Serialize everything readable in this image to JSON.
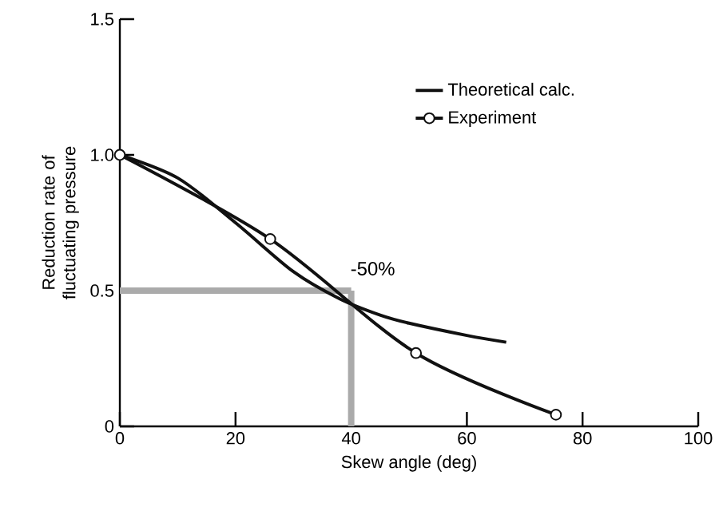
{
  "chart_data": {
    "type": "line",
    "xlabel": "Skew angle (deg)",
    "ylabel": "Reduction rate of fluctuating pressure",
    "xlim": [
      0,
      100
    ],
    "ylim": [
      0,
      1.5
    ],
    "xticks": [
      0,
      20,
      40,
      60,
      80,
      100
    ],
    "yticks": [
      0,
      0.5,
      {
        "value": 1,
        "label": "1.0"
      },
      1.5
    ],
    "grid": false,
    "legend": "top right",
    "line_style": "solid",
    "series": [
      {
        "name": "Theoretical calc.",
        "color": "#111111",
        "marker": "none",
        "x": [
          0,
          10,
          20,
          30,
          38,
          45,
          50,
          60,
          66.8
        ],
        "values": [
          1,
          0.915,
          0.75,
          0.57,
          0.47,
          0.41,
          0.38,
          0.335,
          0.31
        ]
      },
      {
        "name": "Experiment",
        "color": "#111111",
        "marker": "circle",
        "x": [
          0,
          26,
          51.2,
          75.4
        ],
        "values": [
          1,
          0.69,
          0.27,
          0.043
        ]
      }
    ],
    "ref_lines": [
      {
        "axis": "y",
        "value": 0.5,
        "color": "#aaaaaa"
      },
      {
        "axis": "x",
        "value": 40,
        "color": "#aaaaaa"
      }
    ],
    "annotations": [
      {
        "text": "-50%",
        "x": 40,
        "y": 0.5
      }
    ]
  }
}
